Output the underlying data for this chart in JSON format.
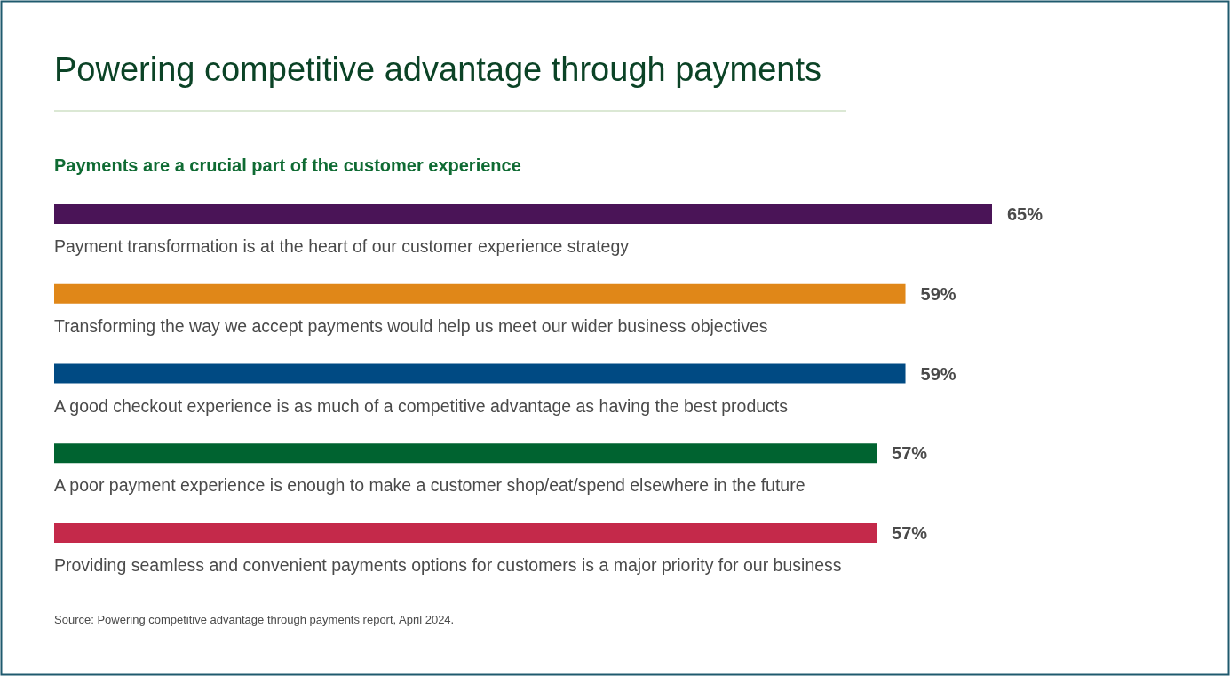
{
  "chart_data": {
    "type": "bar",
    "orientation": "horizontal",
    "title": "Powering competitive advantage through payments",
    "subtitle": "Payments are a crucial part of the customer experience",
    "categories": [
      "Payment transformation is at the heart of our customer experience strategy",
      "Transforming the way we accept payments would help us meet our wider business objectives",
      "A good checkout experience is as much of a competitive advantage as having the best products",
      "A poor payment experience is enough to make a customer shop/eat/spend elsewhere in the future",
      "Providing seamless and convenient payments options for customers is a major priority for our business"
    ],
    "values": [
      65,
      59,
      59,
      57,
      57
    ],
    "colors": [
      "#4a1457",
      "#e08718",
      "#004a83",
      "#006330",
      "#c4294a"
    ],
    "value_labels": [
      "65%",
      "59%",
      "59%",
      "57%",
      "57%"
    ],
    "tick_labels": "y",
    "annotations": [
      "Source: Powering competitive advantage through payments report, April 2024."
    ]
  }
}
